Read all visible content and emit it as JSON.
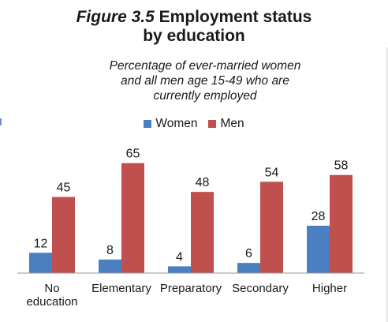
{
  "figure": {
    "label": "Figure 3.5",
    "title_line1": "Employment status",
    "title_line2": "by education",
    "subtitle_line1": "Percentage of ever-married women",
    "subtitle_line2": "and all men age 15-49 who are",
    "subtitle_line3": "currently employed"
  },
  "chart_data": {
    "type": "bar",
    "title": "Employment status by education",
    "subtitle": "Percentage of ever-married women and all men age 15-49 who are currently employed",
    "categories": [
      "No education",
      "Elementary",
      "Preparatory",
      "Secondary",
      "Higher"
    ],
    "category_lines": [
      [
        "No",
        "education"
      ],
      [
        "Elementary"
      ],
      [
        "Preparatory"
      ],
      [
        "Secondary"
      ],
      [
        "Higher"
      ]
    ],
    "series": [
      {
        "name": "Women",
        "color": "#4a7fc1",
        "values": [
          12,
          8,
          4,
          6,
          28
        ]
      },
      {
        "name": "Men",
        "color": "#c0504d",
        "values": [
          45,
          65,
          48,
          54,
          58
        ]
      }
    ],
    "ylim": [
      0,
      70
    ],
    "grid": false,
    "legend": "top-center",
    "xlabel": "",
    "ylabel": ""
  }
}
